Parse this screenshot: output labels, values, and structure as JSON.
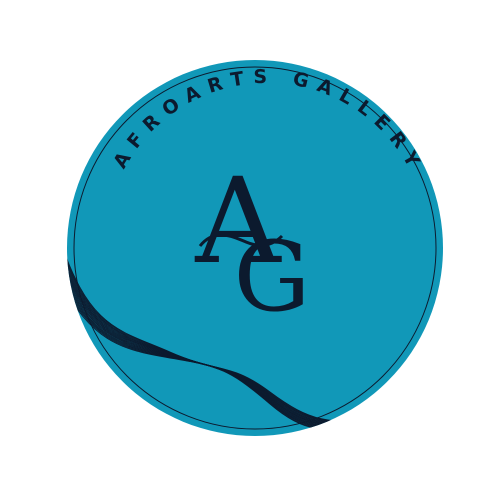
{
  "logo": {
    "brand_name": "AFROARTS GALLERY",
    "monogram_first": "A",
    "monogram_second": "G",
    "colors": {
      "circle_fill": "#1198b8",
      "ink": "#0c1a2e",
      "background": "#ffffff"
    }
  }
}
